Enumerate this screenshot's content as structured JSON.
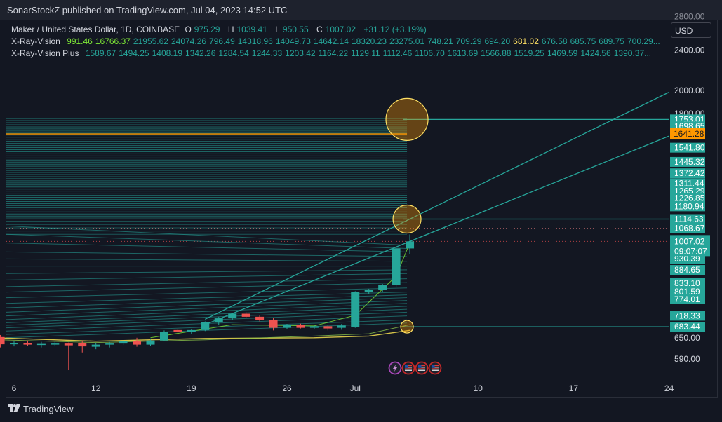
{
  "header": {
    "publisher_text": "SonarStockZ published on TradingView.com, Jul 04, 2023 14:52 UTC"
  },
  "legend": {
    "symbol": "Maker / United States Dollar, 1D, COINBASE",
    "ohlc": [
      {
        "label": "O",
        "value": "975.29"
      },
      {
        "label": "H",
        "value": "1039.41"
      },
      {
        "label": "L",
        "value": "950.55"
      },
      {
        "label": "C",
        "value": "1007.02"
      }
    ],
    "change": "+31.12 (+3.19%)",
    "indicators": [
      {
        "name": "X-Ray-Vision",
        "values": [
          {
            "v": "991.46",
            "color": "#7ee836"
          },
          {
            "v": "16766.37",
            "color": "#7ee836"
          },
          {
            "v": "21955.62",
            "color": "#26a69a"
          },
          {
            "v": "24074.26",
            "color": "#26a69a"
          },
          {
            "v": "796.49",
            "color": "#26a69a"
          },
          {
            "v": "14318.96",
            "color": "#26a69a"
          },
          {
            "v": "14049.73",
            "color": "#26a69a"
          },
          {
            "v": "14642.14",
            "color": "#26a69a"
          },
          {
            "v": "18320.23",
            "color": "#26a69a"
          },
          {
            "v": "23275.01",
            "color": "#26a69a"
          },
          {
            "v": "748.21",
            "color": "#26a69a"
          },
          {
            "v": "709.29",
            "color": "#26a69a"
          },
          {
            "v": "694.20",
            "color": "#26a69a"
          },
          {
            "v": "681.02",
            "color": "#ffe064"
          },
          {
            "v": "676.58",
            "color": "#26a69a"
          },
          {
            "v": "685.75",
            "color": "#26a69a"
          },
          {
            "v": "689.75",
            "color": "#26a69a"
          },
          {
            "v": "700.29...",
            "color": "#26a69a"
          }
        ]
      },
      {
        "name": "X-Ray-Vision Plus",
        "values": [
          {
            "v": "1589.67",
            "color": "#26a69a"
          },
          {
            "v": "1494.25",
            "color": "#26a69a"
          },
          {
            "v": "1408.19",
            "color": "#26a69a"
          },
          {
            "v": "1342.26",
            "color": "#26a69a"
          },
          {
            "v": "1284.54",
            "color": "#26a69a"
          },
          {
            "v": "1244.33",
            "color": "#26a69a"
          },
          {
            "v": "1203.42",
            "color": "#26a69a"
          },
          {
            "v": "1164.22",
            "color": "#26a69a"
          },
          {
            "v": "1129.11",
            "color": "#26a69a"
          },
          {
            "v": "1112.46",
            "color": "#26a69a"
          },
          {
            "v": "1106.70",
            "color": "#26a69a"
          },
          {
            "v": "1613.69",
            "color": "#26a69a"
          },
          {
            "v": "1566.88",
            "color": "#26a69a"
          },
          {
            "v": "1519.25",
            "color": "#26a69a"
          },
          {
            "v": "1469.59",
            "color": "#26a69a"
          },
          {
            "v": "1424.56",
            "color": "#26a69a"
          },
          {
            "v": "1390.37...",
            "color": "#26a69a"
          }
        ]
      }
    ]
  },
  "currency_button": "USD",
  "footer": {
    "brand": "TradingView"
  },
  "chart_data": {
    "type": "candlestick",
    "symbol": "Maker / United States Dollar",
    "interval": "1D",
    "exchange": "COINBASE",
    "colors": {
      "up": "#26a69a",
      "down": "#ef5350",
      "background": "#131722",
      "level": "#26a69a",
      "highlight": "#ff9800",
      "circle_fill": "#ff9800",
      "circle_stroke": "#ffe064",
      "ma_yellow": "#e8d44d"
    },
    "x_ticks": [
      {
        "label": "6",
        "date": "2023-06-06"
      },
      {
        "label": "12",
        "date": "2023-06-12"
      },
      {
        "label": "19",
        "date": "2023-06-19"
      },
      {
        "label": "26",
        "date": "2023-06-26"
      },
      {
        "label": "Jul",
        "date": "2023-07-01"
      },
      {
        "label": "10",
        "date": "2023-07-10"
      },
      {
        "label": "17",
        "date": "2023-07-17"
      },
      {
        "label": "24",
        "date": "2023-07-24"
      }
    ],
    "y_axis": {
      "scale": "log",
      "ylim": [
        540,
        2750
      ],
      "tick_labels": [
        "2400.00",
        "2000.00",
        "1800.00",
        "650.00",
        "590.00"
      ],
      "partial_top_label": "2800.00"
    },
    "price_labels": [
      "1753.01",
      "1698.65",
      "1541.80",
      "1445.32",
      "1372.42",
      "1311.44",
      "1265.29",
      "1226.85",
      "1180.94",
      "1114.63",
      "1068.67",
      "930.39",
      "884.65",
      "833.10",
      "801.59",
      "774.01",
      "718.33",
      "683.44"
    ],
    "highlight_label": {
      "value": "1641.28",
      "color": "#ff9800"
    },
    "current_price": {
      "value": "1007.02",
      "countdown": "09:07:07",
      "color": "#26a69a"
    },
    "candles": [
      {
        "date": "2023-06-03",
        "o": 650,
        "h": 660,
        "l": 640,
        "c": 645
      },
      {
        "date": "2023-06-04",
        "o": 645,
        "h": 655,
        "l": 637,
        "c": 648
      },
      {
        "date": "2023-06-05",
        "o": 652,
        "h": 658,
        "l": 622,
        "c": 631
      },
      {
        "date": "2023-06-06",
        "o": 631,
        "h": 640,
        "l": 625,
        "c": 634
      },
      {
        "date": "2023-06-07",
        "o": 634,
        "h": 642,
        "l": 627,
        "c": 630
      },
      {
        "date": "2023-06-08",
        "o": 630,
        "h": 638,
        "l": 622,
        "c": 632
      },
      {
        "date": "2023-06-09",
        "o": 632,
        "h": 640,
        "l": 625,
        "c": 633
      },
      {
        "date": "2023-06-10",
        "o": 633,
        "h": 636,
        "l": 561,
        "c": 628
      },
      {
        "date": "2023-06-11",
        "o": 634,
        "h": 640,
        "l": 608,
        "c": 625
      },
      {
        "date": "2023-06-12",
        "o": 624,
        "h": 634,
        "l": 617,
        "c": 630
      },
      {
        "date": "2023-06-13",
        "o": 630,
        "h": 638,
        "l": 622,
        "c": 633
      },
      {
        "date": "2023-06-14",
        "o": 633,
        "h": 643,
        "l": 629,
        "c": 640
      },
      {
        "date": "2023-06-15",
        "o": 640,
        "h": 650,
        "l": 624,
        "c": 630
      },
      {
        "date": "2023-06-16",
        "o": 630,
        "h": 645,
        "l": 626,
        "c": 642
      },
      {
        "date": "2023-06-17",
        "o": 642,
        "h": 672,
        "l": 640,
        "c": 668
      },
      {
        "date": "2023-06-18",
        "o": 673,
        "h": 677,
        "l": 665,
        "c": 667
      },
      {
        "date": "2023-06-19",
        "o": 667,
        "h": 675,
        "l": 660,
        "c": 673
      },
      {
        "date": "2023-06-20",
        "o": 673,
        "h": 700,
        "l": 670,
        "c": 698
      },
      {
        "date": "2023-06-21",
        "o": 698,
        "h": 715,
        "l": 690,
        "c": 710
      },
      {
        "date": "2023-06-22",
        "o": 710,
        "h": 728,
        "l": 705,
        "c": 725
      },
      {
        "date": "2023-06-23",
        "o": 725,
        "h": 730,
        "l": 712,
        "c": 715
      },
      {
        "date": "2023-06-24",
        "o": 715,
        "h": 720,
        "l": 700,
        "c": 704
      },
      {
        "date": "2023-06-25",
        "o": 704,
        "h": 712,
        "l": 672,
        "c": 680
      },
      {
        "date": "2023-06-26",
        "o": 680,
        "h": 692,
        "l": 676,
        "c": 688
      },
      {
        "date": "2023-06-27",
        "o": 688,
        "h": 693,
        "l": 678,
        "c": 680
      },
      {
        "date": "2023-06-28",
        "o": 680,
        "h": 690,
        "l": 676,
        "c": 685
      },
      {
        "date": "2023-06-29",
        "o": 685,
        "h": 690,
        "l": 672,
        "c": 678
      },
      {
        "date": "2023-06-30",
        "o": 680,
        "h": 692,
        "l": 674,
        "c": 687
      },
      {
        "date": "2023-07-01",
        "o": 682,
        "h": 803,
        "l": 680,
        "c": 800
      },
      {
        "date": "2023-07-02",
        "o": 800,
        "h": 812,
        "l": 792,
        "c": 808
      },
      {
        "date": "2023-07-03",
        "o": 808,
        "h": 830,
        "l": 800,
        "c": 827
      },
      {
        "date": "2023-07-04",
        "o": 827,
        "h": 980,
        "l": 820,
        "c": 975
      },
      {
        "date": "2023-07-05",
        "o": 975.29,
        "h": 1039.41,
        "l": 950.55,
        "c": 1007.02
      }
    ],
    "annotations": [
      {
        "type": "circle",
        "date": "2023-07-05",
        "price": 1753.01
      },
      {
        "type": "circle",
        "date": "2023-07-05",
        "price": 1114.63
      },
      {
        "type": "circle",
        "date": "2023-07-05",
        "price": 683.44
      }
    ],
    "event_icons": [
      "lightning-icon",
      "us-flag-icon",
      "us-flag-icon",
      "us-flag-icon"
    ]
  }
}
